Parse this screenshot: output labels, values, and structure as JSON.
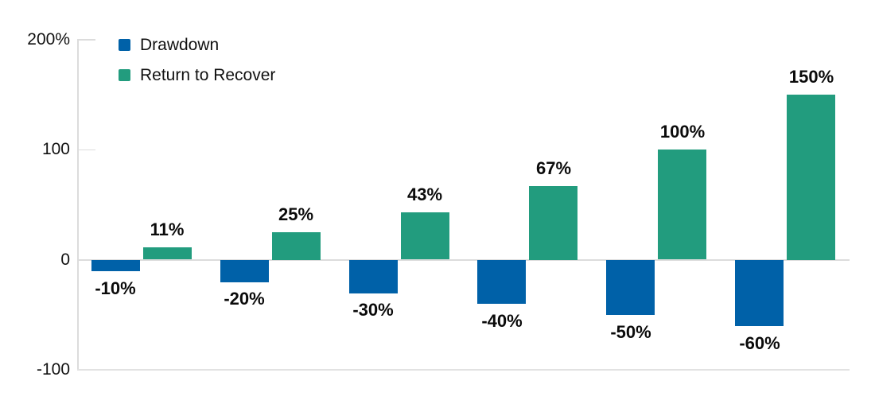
{
  "chart": {
    "background": "#ffffff",
    "axis_color": "#dcdcdc",
    "text_color": "#111111"
  },
  "chart_data": {
    "type": "bar",
    "title": "",
    "groups": 6,
    "series": [
      {
        "name": "Drawdown",
        "color": "#0061A8",
        "values": [
          -10,
          -20,
          -30,
          -40,
          -50,
          -60
        ],
        "labels": [
          "-10%",
          "-20%",
          "-30%",
          "-40%",
          "-50%",
          "-60%"
        ]
      },
      {
        "name": "Return to Recover",
        "color": "#229C7E",
        "values": [
          11,
          25,
          43,
          67,
          100,
          150
        ],
        "labels": [
          "11%",
          "25%",
          "43%",
          "67%",
          "100%",
          "150%"
        ]
      }
    ],
    "y_axis": {
      "min": -100,
      "max": 200,
      "ticks": [
        200,
        100,
        0,
        -100
      ],
      "tick_labels": [
        "200%",
        "100",
        "0",
        "-100"
      ]
    },
    "x_axis": {
      "labels_visible": false
    },
    "legend": {
      "position": "top-left"
    },
    "grid": {
      "zero_line": true,
      "bottom_line": true,
      "inward_tick_stubs": true,
      "ylim": [
        -100,
        200
      ]
    }
  }
}
